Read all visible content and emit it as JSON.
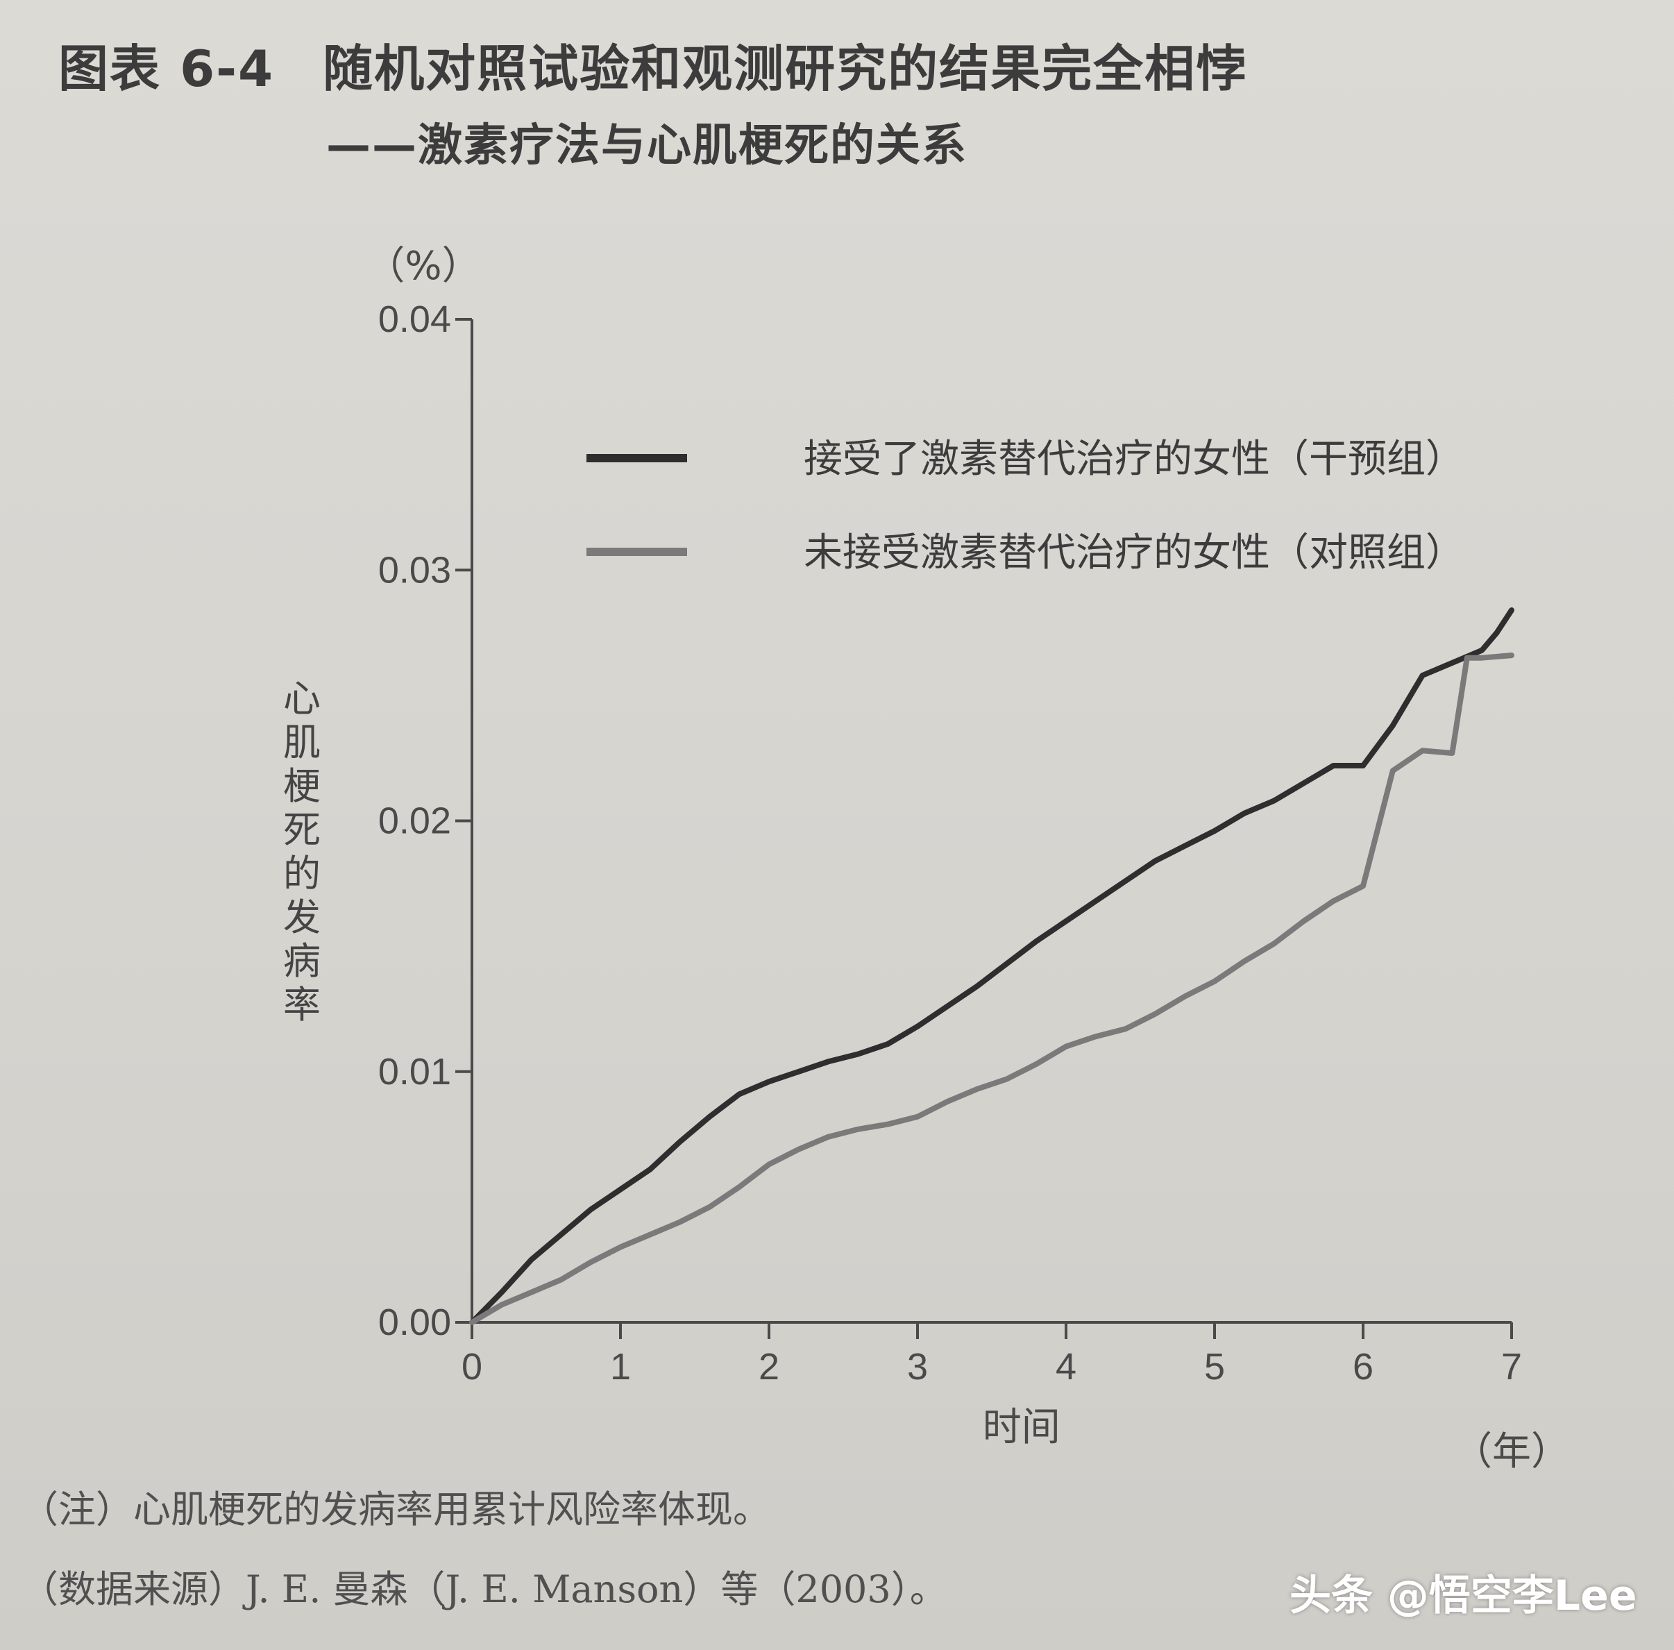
{
  "figure": {
    "number": "图表 6-4",
    "title": "随机对照试验和观测研究的结果完全相悖",
    "subtitle": "——激素疗法与心肌梗死的关系"
  },
  "chart_data": {
    "type": "line",
    "y_unit_label": "（%）",
    "ylabel": "心肌梗死的发病率",
    "xlabel": "时间",
    "x_unit_label": "（年）",
    "xlim": [
      0,
      7
    ],
    "ylim": [
      0,
      0.04
    ],
    "x_ticks": [
      0,
      1,
      2,
      3,
      4,
      5,
      6,
      7
    ],
    "x_tick_labels": [
      "0",
      "1",
      "2",
      "3",
      "4",
      "5",
      "6",
      "7"
    ],
    "y_ticks": [
      0.0,
      0.01,
      0.02,
      0.03,
      0.04
    ],
    "y_tick_labels": [
      "0.00",
      "0.01",
      "0.02",
      "0.03",
      "0.04"
    ],
    "grid": false,
    "legend_position": "top-right",
    "series": [
      {
        "name": "接受了激素替代治疗的女性（干预组）",
        "color": "#2e2e2e",
        "x": [
          0,
          0.2,
          0.4,
          0.6,
          0.8,
          1.0,
          1.2,
          1.4,
          1.6,
          1.8,
          2.0,
          2.2,
          2.4,
          2.6,
          2.8,
          3.0,
          3.2,
          3.4,
          3.6,
          3.8,
          4.0,
          4.2,
          4.4,
          4.6,
          4.8,
          5.0,
          5.2,
          5.4,
          5.6,
          5.8,
          6.0,
          6.2,
          6.4,
          6.6,
          6.8,
          6.9,
          7.0
        ],
        "y": [
          0,
          0.0012,
          0.0025,
          0.0035,
          0.0045,
          0.0053,
          0.0061,
          0.0072,
          0.0082,
          0.0091,
          0.0096,
          0.01,
          0.0104,
          0.0107,
          0.0111,
          0.0118,
          0.0126,
          0.0134,
          0.0143,
          0.0152,
          0.016,
          0.0168,
          0.0176,
          0.0184,
          0.019,
          0.0196,
          0.0203,
          0.0208,
          0.0215,
          0.0222,
          0.0222,
          0.0238,
          0.0258,
          0.0263,
          0.0268,
          0.0275,
          0.0284
        ]
      },
      {
        "name": "未接受激素替代治疗的女性（对照组）",
        "color": "#7a7a7a",
        "x": [
          0,
          0.2,
          0.4,
          0.6,
          0.8,
          1.0,
          1.2,
          1.4,
          1.6,
          1.8,
          2.0,
          2.2,
          2.4,
          2.6,
          2.8,
          3.0,
          3.2,
          3.4,
          3.6,
          3.8,
          4.0,
          4.2,
          4.4,
          4.6,
          4.8,
          5.0,
          5.2,
          5.4,
          5.6,
          5.8,
          6.0,
          6.2,
          6.4,
          6.6,
          6.7,
          6.8,
          7.0
        ],
        "y": [
          0,
          0.0007,
          0.0012,
          0.0017,
          0.0024,
          0.003,
          0.0035,
          0.004,
          0.0046,
          0.0054,
          0.0063,
          0.0069,
          0.0074,
          0.0077,
          0.0079,
          0.0082,
          0.0088,
          0.0093,
          0.0097,
          0.0103,
          0.011,
          0.0114,
          0.0117,
          0.0123,
          0.013,
          0.0136,
          0.0144,
          0.0151,
          0.016,
          0.0168,
          0.0174,
          0.022,
          0.0228,
          0.0227,
          0.0265,
          0.0265,
          0.0266
        ]
      }
    ]
  },
  "notes": {
    "note1": "（注）心肌梗死的发病率用累计风险率体现。",
    "source": "（数据来源）J. E. 曼森（J. E. Manson）等（2003）。"
  },
  "watermark": "头条 @悟空李Lee"
}
